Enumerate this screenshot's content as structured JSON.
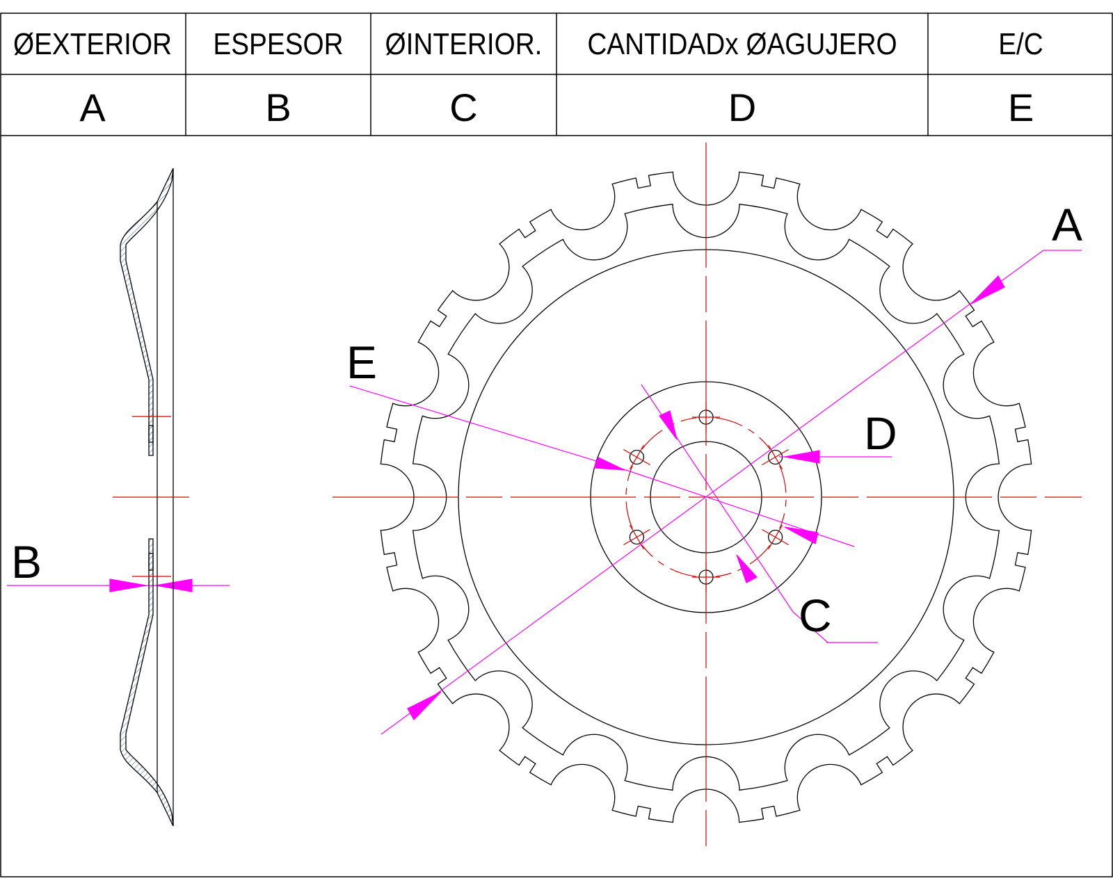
{
  "header": {
    "columns": [
      "ØEXTERIOR",
      "ESPESOR",
      "ØINTERIOR.",
      "CANTIDADx ØAGUJERO",
      "E/C"
    ],
    "letters": [
      "A",
      "B",
      "C",
      "D",
      "E"
    ]
  },
  "drawing": {
    "labels": {
      "a": "A",
      "b": "B",
      "c": "C",
      "d": "D",
      "e": "E"
    },
    "colors": {
      "outline": "#000000",
      "centerline": "#d40000",
      "dimension": "#ff00ff",
      "hatch": "#3a5f9a"
    },
    "notch_count": 16,
    "bolt_hole_count": 6
  }
}
